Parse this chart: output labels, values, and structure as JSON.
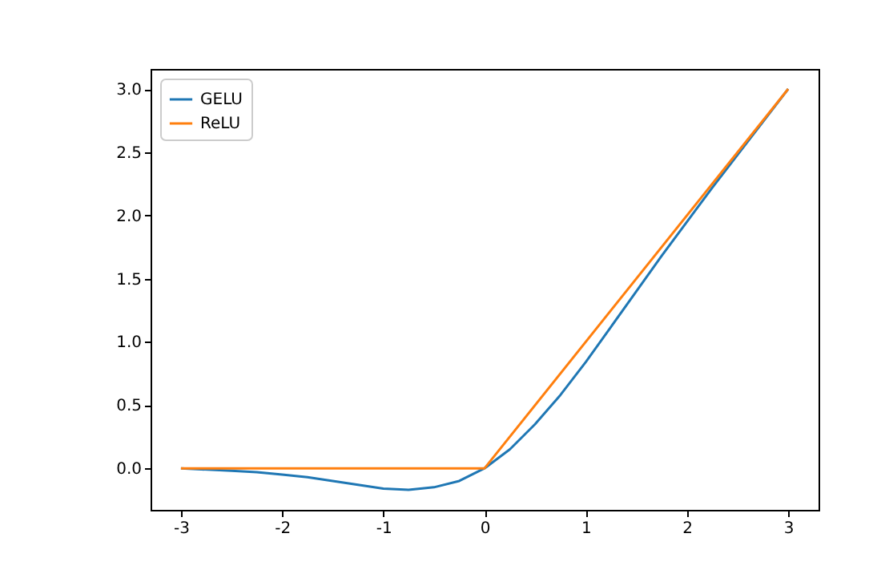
{
  "chart_data": {
    "type": "line",
    "xlim": [
      -3.3,
      3.3
    ],
    "ylim": [
      -0.3285,
      3.1585
    ],
    "xticks": [
      -3,
      -2,
      -1,
      0,
      1,
      2,
      3
    ],
    "yticks": [
      {
        "value": 0,
        "label": "0.0"
      },
      {
        "value": 0.5,
        "label": "0.5"
      },
      {
        "value": 1,
        "label": "1.0"
      },
      {
        "value": 1.5,
        "label": "1.5"
      },
      {
        "value": 2,
        "label": "2.0"
      },
      {
        "value": 2.5,
        "label": "2.5"
      },
      {
        "value": 3,
        "label": "3.0"
      }
    ],
    "grid": false,
    "legend": "top left",
    "line_style": "solid",
    "marker": "none",
    "series": [
      {
        "name": "GELU",
        "color": "#1f77b4",
        "x": [
          -3,
          -2.5,
          -2.25,
          -2,
          -1.75,
          -1.5,
          -1.25,
          -1,
          -0.75,
          -0.5,
          -0.25,
          0,
          0.25,
          0.5,
          0.75,
          1,
          1.25,
          1.5,
          1.75,
          2,
          2.25,
          2.5,
          2.75,
          3
        ],
        "values": [
          0,
          -0.02,
          -0.03,
          -0.05,
          -0.07,
          -0.1,
          -0.13,
          -0.16,
          -0.17,
          -0.15,
          -0.1,
          0,
          0.15,
          0.35,
          0.58,
          0.84,
          1.12,
          1.4,
          1.68,
          1.95,
          2.22,
          2.48,
          2.74,
          3
        ]
      },
      {
        "name": "ReLU",
        "color": "#ff7f0e",
        "x": [
          -3,
          0,
          3
        ],
        "values": [
          0,
          0,
          3
        ]
      }
    ]
  }
}
